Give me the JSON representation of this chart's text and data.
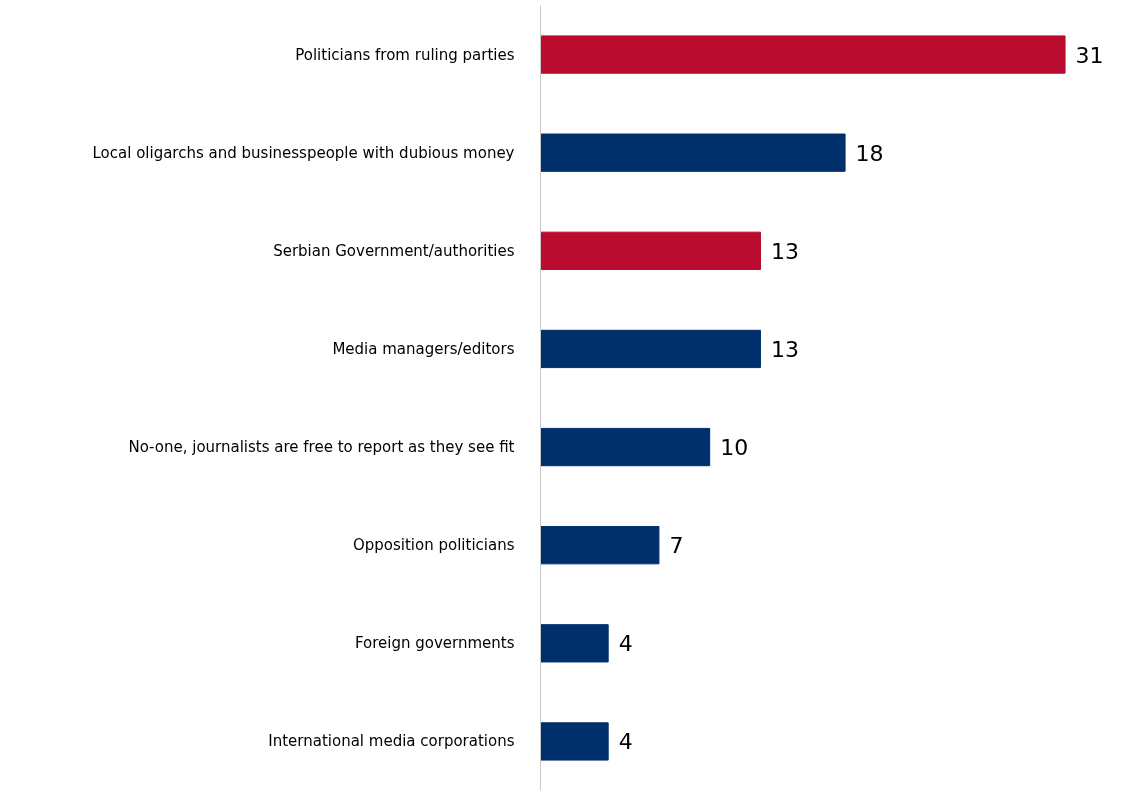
{
  "chart_data": {
    "type": "bar",
    "orientation": "horizontal",
    "data_labels": true,
    "grid": false,
    "categories": [
      "Politicians from ruling parties",
      "Local oligarchs and businesspeople with dubious money",
      "Serbian Government/authorities",
      "Media managers/editors",
      "No-one, journalists are free to report as they see fit",
      "Opposition politicians",
      "Foreign governments",
      "International media corporations"
    ],
    "values": [
      31,
      18,
      13,
      13,
      10,
      7,
      4,
      4
    ],
    "colors": [
      "#ba0c2f",
      "#00306b",
      "#ba0c2f",
      "#00306b",
      "#00306b",
      "#00306b",
      "#00306b",
      "#00306b"
    ]
  }
}
